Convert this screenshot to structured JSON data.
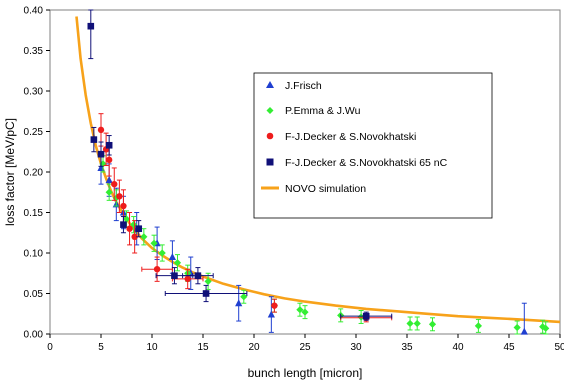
{
  "chart_data": {
    "type": "scatter",
    "xlabel": "bunch length  [micron]",
    "ylabel": "loss factor [MeV/pC]",
    "xlim": [
      0,
      50
    ],
    "ylim": [
      0,
      0.4
    ],
    "x_ticks": [
      "0",
      "5",
      "10",
      "15",
      "20",
      "25",
      "30",
      "35",
      "40",
      "45",
      "50"
    ],
    "y_ticks": [
      "0.00",
      "0.05",
      "0.10",
      "0.15",
      "0.20",
      "0.25",
      "0.30",
      "0.35",
      "0.40"
    ],
    "grid": false,
    "legend_position": "upper-right",
    "series": [
      {
        "name": "J.Frisch",
        "marker": "triangle",
        "color": "#1f3fd0",
        "points": [
          {
            "x": 5.0,
            "y": 0.205,
            "yerr": 0.02
          },
          {
            "x": 5.8,
            "y": 0.19,
            "yerr": 0.02
          },
          {
            "x": 6.5,
            "y": 0.16,
            "yerr": 0.02
          },
          {
            "x": 7.2,
            "y": 0.15,
            "yerr": 0.02
          },
          {
            "x": 8.5,
            "y": 0.13,
            "yerr": 0.02
          },
          {
            "x": 10.5,
            "y": 0.112,
            "yerr": 0.02
          },
          {
            "x": 12.0,
            "y": 0.095,
            "yerr": 0.02
          },
          {
            "x": 13.8,
            "y": 0.075,
            "yerr": 0.02
          },
          {
            "x": 18.5,
            "y": 0.038,
            "yerr": 0.022
          },
          {
            "x": 21.7,
            "y": 0.024,
            "yerr": 0.022
          },
          {
            "x": 46.5,
            "y": 0.003,
            "yerr": 0.035
          }
        ]
      },
      {
        "name": "P.Emma & J.Wu",
        "marker": "diamond",
        "color": "#33ee33",
        "points": [
          {
            "x": 5.2,
            "y": 0.21,
            "yerr": 0.01
          },
          {
            "x": 5.8,
            "y": 0.175,
            "yerr": 0.01
          },
          {
            "x": 6.5,
            "y": 0.168,
            "yerr": 0.01
          },
          {
            "x": 7.5,
            "y": 0.142,
            "yerr": 0.01
          },
          {
            "x": 8.2,
            "y": 0.135,
            "yerr": 0.01
          },
          {
            "x": 9.2,
            "y": 0.12,
            "yerr": 0.01
          },
          {
            "x": 10.2,
            "y": 0.112,
            "yerr": 0.01
          },
          {
            "x": 11.0,
            "y": 0.1,
            "yerr": 0.01
          },
          {
            "x": 12.5,
            "y": 0.088,
            "yerr": 0.01
          },
          {
            "x": 13.5,
            "y": 0.075,
            "yerr": 0.01
          },
          {
            "x": 15.5,
            "y": 0.065,
            "yerr": 0.01
          },
          {
            "x": 19.0,
            "y": 0.046,
            "yerr": 0.008
          },
          {
            "x": 22.0,
            "y": 0.035,
            "yerr": 0.008
          },
          {
            "x": 24.5,
            "y": 0.03,
            "yerr": 0.008
          },
          {
            "x": 25.0,
            "y": 0.027,
            "yerr": 0.008
          },
          {
            "x": 28.5,
            "y": 0.023,
            "yerr": 0.008
          },
          {
            "x": 30.5,
            "y": 0.021,
            "yerr": 0.008
          },
          {
            "x": 35.3,
            "y": 0.013,
            "yerr": 0.008
          },
          {
            "x": 36.0,
            "y": 0.013,
            "yerr": 0.008
          },
          {
            "x": 37.5,
            "y": 0.012,
            "yerr": 0.008
          },
          {
            "x": 42.0,
            "y": 0.01,
            "yerr": 0.008
          },
          {
            "x": 45.8,
            "y": 0.008,
            "yerr": 0.008
          },
          {
            "x": 48.3,
            "y": 0.009,
            "yerr": 0.008
          },
          {
            "x": 48.6,
            "y": 0.007,
            "yerr": 0.008
          }
        ]
      },
      {
        "name": "F-J.Decker & S.Novokhatski",
        "marker": "circle",
        "color": "#ee1c1c",
        "points": [
          {
            "x": 5.0,
            "y": 0.252,
            "yerr": 0.02
          },
          {
            "x": 5.5,
            "y": 0.228,
            "yerr": 0.02
          },
          {
            "x": 5.8,
            "y": 0.215,
            "yerr": 0.02
          },
          {
            "x": 6.3,
            "y": 0.185,
            "yerr": 0.02
          },
          {
            "x": 6.8,
            "y": 0.17,
            "yerr": 0.02
          },
          {
            "x": 7.2,
            "y": 0.158,
            "yerr": 0.02
          },
          {
            "x": 7.8,
            "y": 0.13,
            "yerr": 0.02
          },
          {
            "x": 8.3,
            "y": 0.12,
            "yerr": 0.02
          },
          {
            "x": 10.5,
            "y": 0.08,
            "yerr": 0.015,
            "xerr": 1.5
          },
          {
            "x": 13.5,
            "y": 0.068,
            "yerr": 0.012,
            "xerr": 1.5
          },
          {
            "x": 22.0,
            "y": 0.035,
            "yerr": 0.008
          },
          {
            "x": 31.0,
            "y": 0.02,
            "yerr": 0.005,
            "xerr": 2.5
          }
        ]
      },
      {
        "name": "F-J.Decker & S.Novokhatski 65 nC",
        "marker": "square",
        "color": "#101078",
        "points": [
          {
            "x": 4.0,
            "y": 0.38,
            "yerr": 0.04
          },
          {
            "x": 4.3,
            "y": 0.24,
            "yerr": 0.015
          },
          {
            "x": 5.0,
            "y": 0.222,
            "yerr": 0.015
          },
          {
            "x": 5.8,
            "y": 0.233,
            "yerr": 0.012
          },
          {
            "x": 7.2,
            "y": 0.135,
            "yerr": 0.01
          },
          {
            "x": 8.7,
            "y": 0.13,
            "yerr": 0.01
          },
          {
            "x": 12.2,
            "y": 0.072,
            "yerr": 0.01,
            "xerr": 1.8
          },
          {
            "x": 14.5,
            "y": 0.072,
            "yerr": 0.01,
            "xerr": 1.5
          },
          {
            "x": 15.3,
            "y": 0.05,
            "yerr": 0.01,
            "xerr": 4.0
          },
          {
            "x": 31.0,
            "y": 0.022,
            "yerr": 0.005,
            "xerr": 2.5
          }
        ]
      }
    ],
    "curve": {
      "name": "NOVO simulation",
      "color": "#f7a21a",
      "points": [
        [
          2.6,
          0.392
        ],
        [
          3.0,
          0.34
        ],
        [
          3.5,
          0.295
        ],
        [
          4.0,
          0.26
        ],
        [
          4.5,
          0.232
        ],
        [
          5.0,
          0.21
        ],
        [
          5.5,
          0.192
        ],
        [
          6.0,
          0.176
        ],
        [
          6.5,
          0.163
        ],
        [
          7.0,
          0.152
        ],
        [
          8.0,
          0.133
        ],
        [
          9.0,
          0.118
        ],
        [
          10.0,
          0.106
        ],
        [
          11.0,
          0.097
        ],
        [
          12.0,
          0.089
        ],
        [
          13.0,
          0.082
        ],
        [
          14.0,
          0.076
        ],
        [
          15.0,
          0.071
        ],
        [
          17.0,
          0.062
        ],
        [
          19.0,
          0.055
        ],
        [
          21.0,
          0.049
        ],
        [
          23.0,
          0.044
        ],
        [
          25.0,
          0.04
        ],
        [
          28.0,
          0.035
        ],
        [
          31.0,
          0.031
        ],
        [
          34.0,
          0.028
        ],
        [
          37.0,
          0.025
        ],
        [
          40.0,
          0.022
        ],
        [
          43.0,
          0.02
        ],
        [
          46.0,
          0.018
        ],
        [
          50.0,
          0.015
        ]
      ]
    }
  }
}
